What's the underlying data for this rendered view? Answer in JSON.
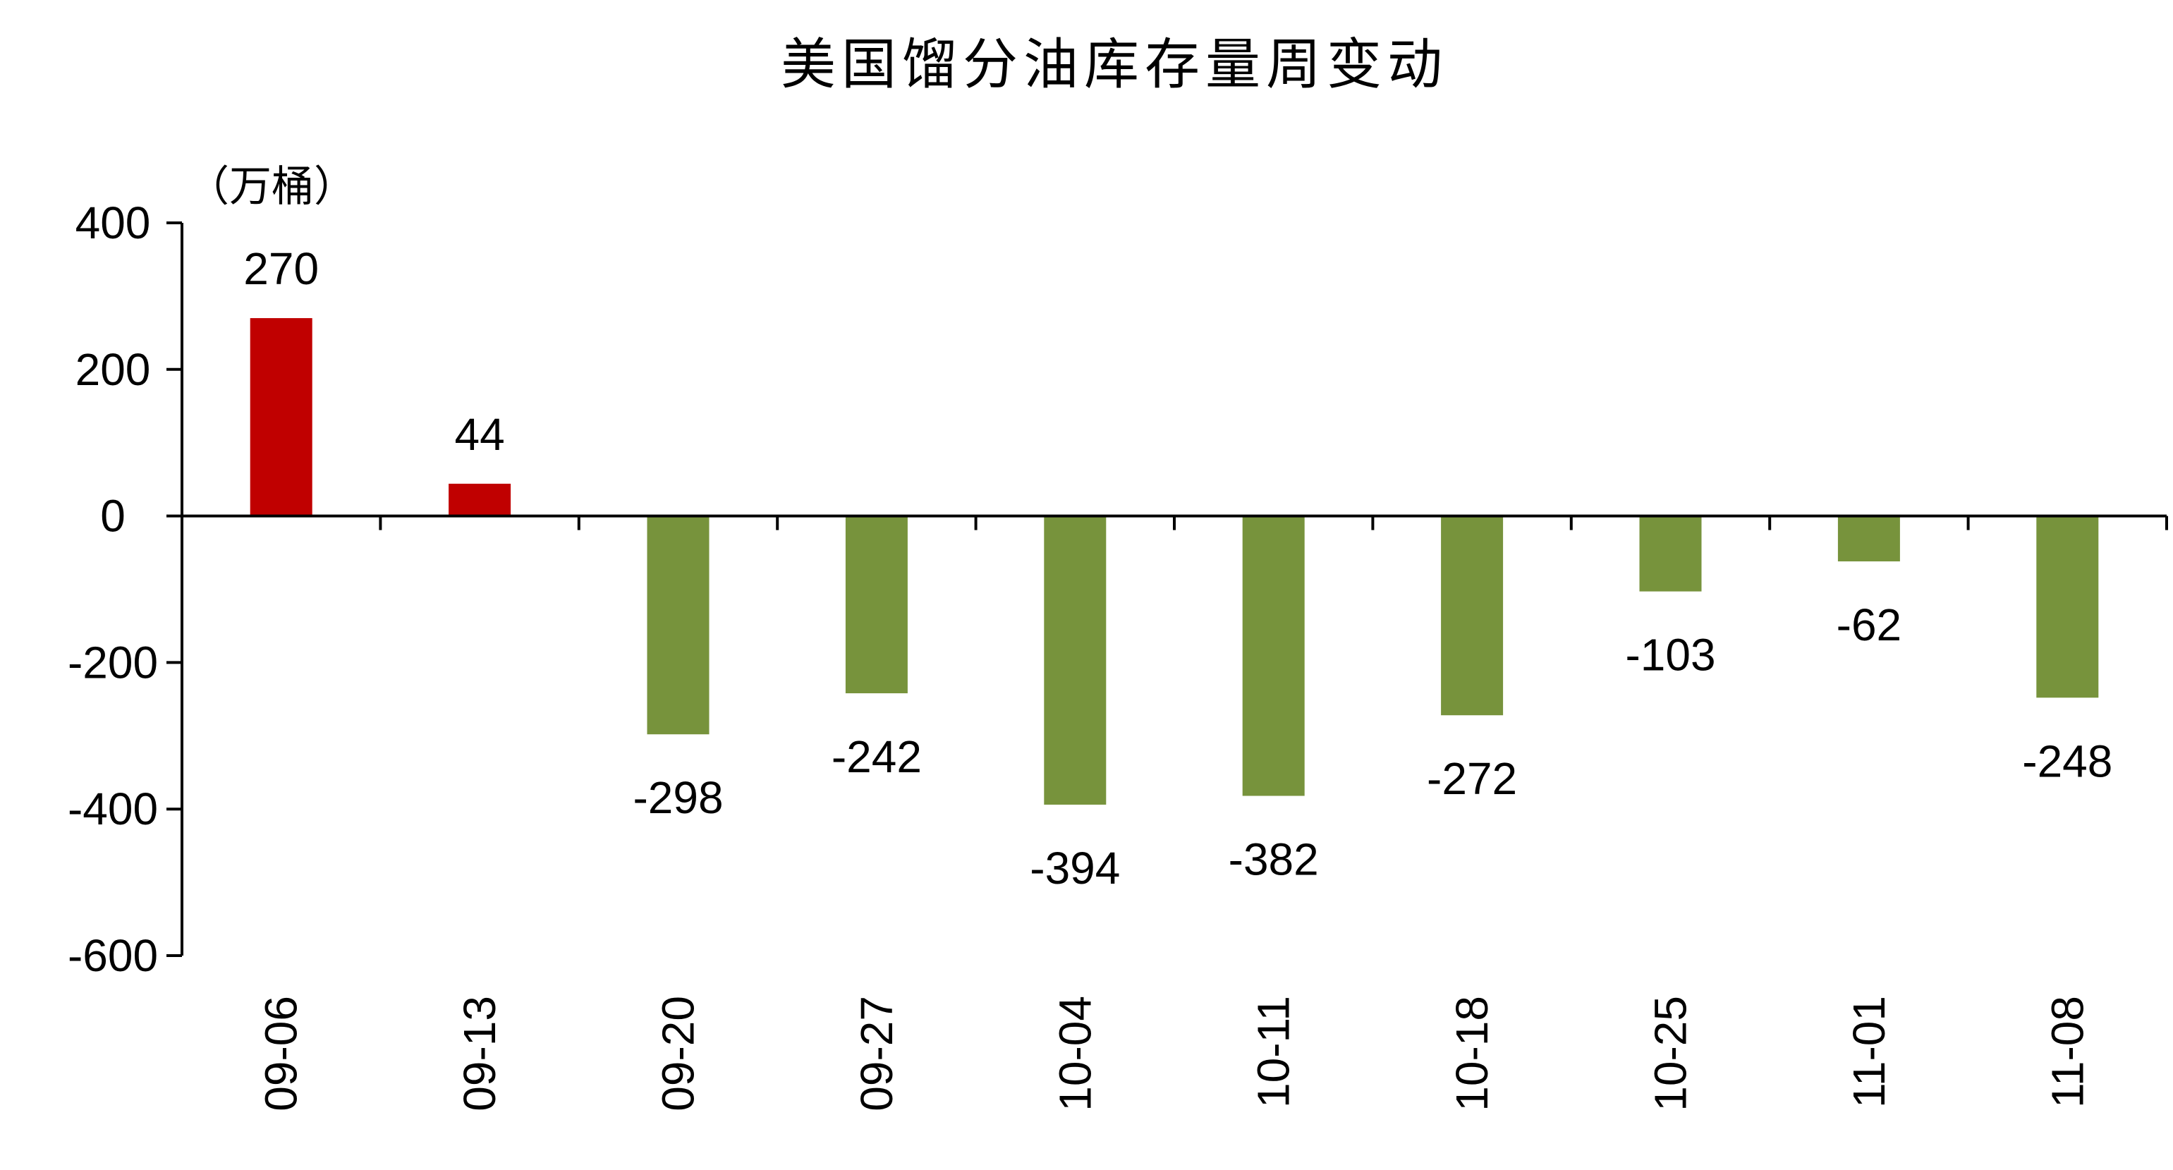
{
  "chart_data": {
    "type": "bar",
    "title": "美国馏分油库存量周变动",
    "unit_label": "（万桶）",
    "categories": [
      "09-06",
      "09-13",
      "09-20",
      "09-27",
      "10-04",
      "10-11",
      "10-18",
      "10-25",
      "11-01",
      "11-08"
    ],
    "values": [
      270,
      44,
      -298,
      -242,
      -394,
      -382,
      -272,
      -103,
      -62,
      -248
    ],
    "data_labels": [
      "270",
      "44",
      "-298",
      "-242",
      "-394",
      "-382",
      "-272",
      "-103",
      "-62",
      "-248"
    ],
    "ylim": [
      -600,
      400
    ],
    "yticks": [
      400,
      200,
      0,
      -200,
      -400,
      -600
    ],
    "ytick_labels": [
      "400",
      "200",
      "0",
      "-200",
      "-400",
      "-600"
    ],
    "grid": false,
    "legend": "none",
    "colors": {
      "positive": "#C00000",
      "negative": "#77933C",
      "axis": "#000000"
    }
  }
}
